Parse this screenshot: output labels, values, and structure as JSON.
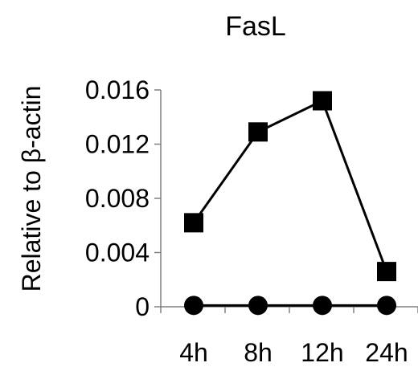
{
  "chart_data": {
    "type": "line",
    "title": "FasL",
    "xlabel": "",
    "ylabel": "Relative to β-actin",
    "categories": [
      "4h",
      "8h",
      "12h",
      "24h"
    ],
    "ylim": [
      0,
      0.016
    ],
    "yticks": [
      "0",
      "0.004",
      "0.008",
      "0.012",
      "0.016"
    ],
    "grid": false,
    "series": [
      {
        "marker": "square",
        "values": [
          0.0062,
          0.0129,
          0.0152,
          0.0026
        ]
      },
      {
        "marker": "circle",
        "values": [
          0.0001,
          0.0001,
          0.0001,
          0.0001
        ]
      }
    ]
  }
}
